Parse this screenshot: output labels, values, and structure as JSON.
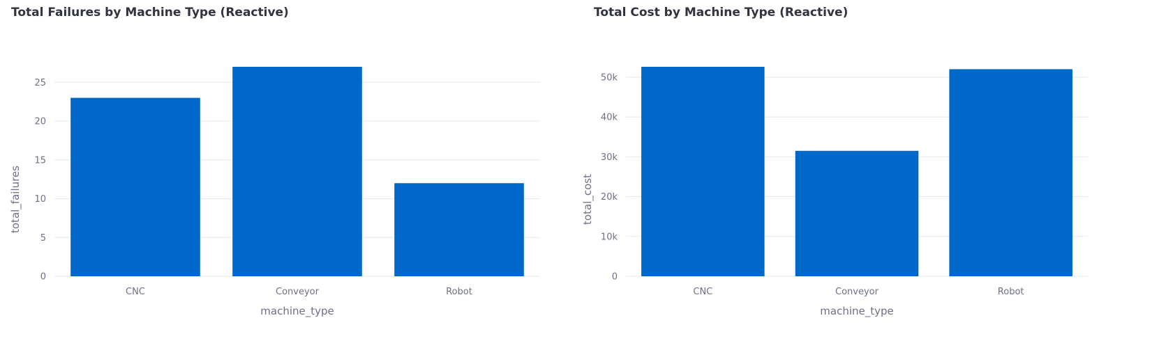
{
  "chart_data": [
    {
      "type": "bar",
      "title": "Total Failures by Machine Type (Reactive)",
      "xlabel": "machine_type",
      "ylabel": "total_failures",
      "categories": [
        "CNC",
        "Conveyor",
        "Robot"
      ],
      "values": [
        23,
        27,
        12
      ],
      "ylim": [
        0,
        27
      ],
      "yticks": [
        0,
        5,
        10,
        15,
        20,
        25
      ],
      "ytick_labels": [
        "0",
        "5",
        "10",
        "15",
        "20",
        "25"
      ],
      "bar_color": "#0068c9",
      "grid": true,
      "legend": "none"
    },
    {
      "type": "bar",
      "title": "Total Cost by Machine Type (Reactive)",
      "xlabel": "machine_type",
      "ylabel": "total_cost",
      "categories": [
        "CNC",
        "Conveyor",
        "Robot"
      ],
      "values": [
        52600,
        31500,
        52000
      ],
      "ylim": [
        0,
        52600
      ],
      "yticks": [
        0,
        10000,
        20000,
        30000,
        40000,
        50000
      ],
      "ytick_labels": [
        "0",
        "10k",
        "20k",
        "30k",
        "40k",
        "50k"
      ],
      "bar_color": "#0068c9",
      "grid": true,
      "legend": "none"
    }
  ]
}
